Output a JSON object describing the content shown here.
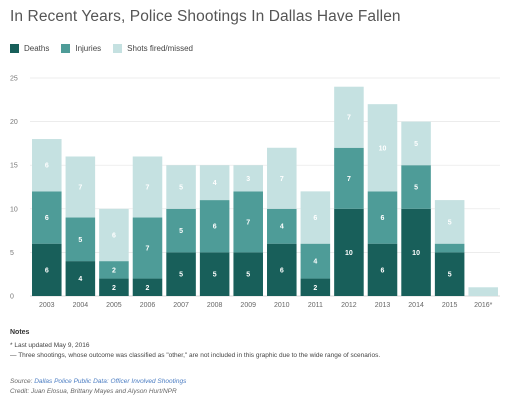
{
  "title": "In Recent Years, Police Shootings In Dallas Have Fallen",
  "colors": {
    "deaths": "#185f5a",
    "injuries": "#4e9c98",
    "shots": "#c5e1e1",
    "grid": "#e6e6e6",
    "axis": "#cccccc"
  },
  "chart_data": {
    "type": "bar",
    "stacked": true,
    "categories": [
      "2003",
      "2004",
      "2005",
      "2006",
      "2007",
      "2008",
      "2009",
      "2010",
      "2011",
      "2012",
      "2013",
      "2014",
      "2015",
      "2016*"
    ],
    "series": [
      {
        "name": "Deaths",
        "key": "deaths",
        "values": [
          6,
          4,
          2,
          2,
          5,
          5,
          5,
          6,
          2,
          10,
          6,
          10,
          5,
          0
        ]
      },
      {
        "name": "Injuries",
        "key": "injuries",
        "values": [
          6,
          5,
          2,
          7,
          5,
          6,
          7,
          4,
          4,
          7,
          6,
          5,
          1,
          0
        ]
      },
      {
        "name": "Shots fired/missed",
        "key": "shots",
        "values": [
          6,
          7,
          6,
          7,
          5,
          4,
          3,
          7,
          6,
          7,
          10,
          5,
          5,
          1
        ]
      }
    ],
    "data_labels": {
      "deaths": [
        "6",
        "4",
        "2",
        "2",
        "5",
        "5",
        "5",
        "6",
        "2",
        "10",
        "6",
        "10",
        "5",
        ""
      ],
      "injuries": [
        "6",
        "5",
        "2",
        "7",
        "5",
        "6",
        "7",
        "4",
        "4",
        "7",
        "6",
        "5",
        "",
        ""
      ],
      "shots": [
        "6",
        "7",
        "6",
        "7",
        "5",
        "4",
        "3",
        "7",
        "6",
        "7",
        "10",
        "5",
        "5",
        ""
      ]
    },
    "ylim": [
      0,
      25
    ],
    "yticks": [
      "0",
      "5",
      "10",
      "15",
      "20",
      "25"
    ],
    "legend": "top-left",
    "grid": true
  },
  "notes": {
    "heading": "Notes",
    "lines": [
      "* Last updated May 9, 2016",
      "— Three shootings, whose outcome was classified as \"other,\" are not included in this graphic due to the wide range of scenarios."
    ]
  },
  "footer": {
    "source_prefix": "Source: ",
    "source_link": "Dallas Police Public Data: Officer Involved Shootings",
    "credit": "Credit: Juan Elosua, Brittany Mayes and Alyson Hurt/NPR"
  }
}
